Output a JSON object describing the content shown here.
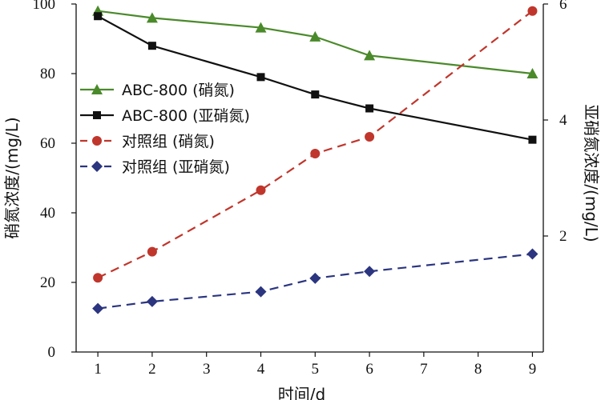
{
  "chart_data": {
    "type": "line",
    "x": [
      1,
      2,
      4,
      5,
      6,
      9
    ],
    "xlabel": "时间/d",
    "xlim": [
      0.6,
      9.2
    ],
    "xticks": [
      1,
      2,
      3,
      4,
      5,
      6,
      7,
      8,
      9
    ],
    "ylabel_left": "硝氮浓度/(mg/L)",
    "ylim_left": [
      0,
      100
    ],
    "yticks_left": [
      0,
      20,
      40,
      60,
      80,
      100
    ],
    "ylabel_right": "亚硝氮浓度/(mg/L)",
    "ylim_right": [
      0,
      6
    ],
    "yticks_right": [
      2,
      4,
      6
    ],
    "legend_position": "upper-left",
    "grid": false,
    "series": [
      {
        "name": "ABC-800 (硝氮)",
        "axis": "left",
        "color": "#4a8a2a",
        "dashed": false,
        "marker": "triangle",
        "values": [
          98,
          96,
          93.2,
          90.6,
          85.2,
          80
        ]
      },
      {
        "name": "ABC-800 (亚硝氮)",
        "axis": "left",
        "color": "#111111",
        "dashed": false,
        "marker": "square",
        "values": [
          96.5,
          88,
          79,
          74,
          70,
          61
        ]
      },
      {
        "name": "对照组 (硝氮)",
        "axis": "right",
        "color": "#c0362c",
        "dashed": true,
        "marker": "circle",
        "values": [
          1.28,
          1.73,
          2.79,
          3.42,
          3.71,
          5.88
        ]
      },
      {
        "name": "对照组 (亚硝氮)",
        "axis": "right",
        "color": "#2b3580",
        "dashed": true,
        "marker": "diamond",
        "values": [
          0.75,
          0.87,
          1.04,
          1.27,
          1.39,
          1.69
        ]
      }
    ]
  }
}
